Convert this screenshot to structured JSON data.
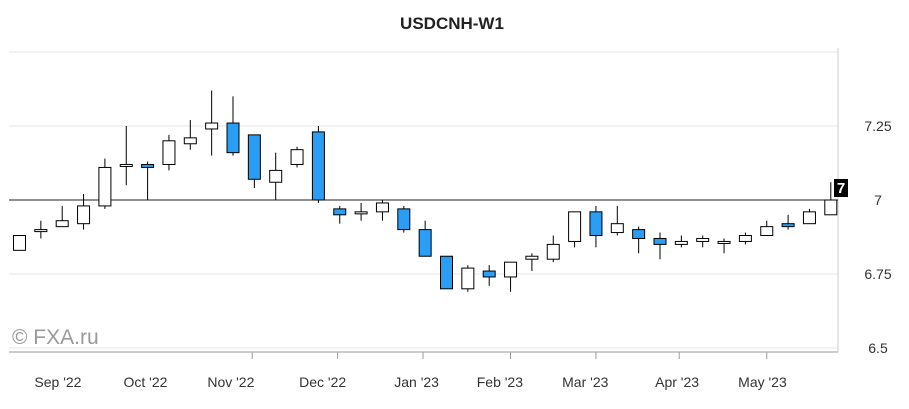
{
  "watermark": "© FXA.ru",
  "chart_data": {
    "type": "candlestick",
    "title": "USDCNH-W1",
    "ylim": [
      6.5,
      7.5
    ],
    "yticks": [
      6.5,
      6.75,
      7,
      7.25
    ],
    "ytick_labels": [
      "6.5",
      "6.75",
      "7",
      "7.25"
    ],
    "xtick_labels": [
      {
        "label": "Sep '22",
        "index": 1.8
      },
      {
        "label": "Oct '22",
        "index": 5.9
      },
      {
        "label": "Nov '22",
        "index": 9.9
      },
      {
        "label": "Dec '22",
        "index": 14.2
      },
      {
        "label": "Jan '23",
        "index": 18.6
      },
      {
        "label": "Feb '23",
        "index": 22.5
      },
      {
        "label": "Mar '23",
        "index": 26.5
      },
      {
        "label": "Apr '23",
        "index": 30.8
      },
      {
        "label": "May '23",
        "index": 34.8
      }
    ],
    "month_dividers": [
      10.9,
      14.9,
      18.9,
      23.0,
      27.0,
      30.9,
      35.0
    ],
    "current_price": 7.0,
    "current_label": "7",
    "colors": {
      "up": "#ffffff",
      "down": "#2a9df4",
      "wick": "#000000",
      "grid": "#e6e6e6"
    },
    "candles": [
      {
        "o": 6.83,
        "h": 6.88,
        "l": 6.83,
        "c": 6.88
      },
      {
        "o": 6.9,
        "h": 6.93,
        "l": 6.87,
        "c": 6.9
      },
      {
        "o": 6.91,
        "h": 6.98,
        "l": 6.91,
        "c": 6.93
      },
      {
        "o": 6.92,
        "h": 7.02,
        "l": 6.9,
        "c": 6.98
      },
      {
        "o": 6.98,
        "h": 7.14,
        "l": 6.97,
        "c": 7.11
      },
      {
        "o": 7.12,
        "h": 7.25,
        "l": 7.05,
        "c": 7.12
      },
      {
        "o": 7.12,
        "h": 7.13,
        "l": 7.0,
        "c": 7.11
      },
      {
        "o": 7.12,
        "h": 7.22,
        "l": 7.1,
        "c": 7.2
      },
      {
        "o": 7.19,
        "h": 7.27,
        "l": 7.17,
        "c": 7.21
      },
      {
        "o": 7.24,
        "h": 7.37,
        "l": 7.15,
        "c": 7.26
      },
      {
        "o": 7.26,
        "h": 7.35,
        "l": 7.15,
        "c": 7.16
      },
      {
        "o": 7.22,
        "h": 7.22,
        "l": 7.04,
        "c": 7.07
      },
      {
        "o": 7.06,
        "h": 7.16,
        "l": 7.0,
        "c": 7.1
      },
      {
        "o": 7.12,
        "h": 7.18,
        "l": 7.11,
        "c": 7.17
      },
      {
        "o": 7.23,
        "h": 7.25,
        "l": 6.99,
        "c": 7.0
      },
      {
        "o": 6.97,
        "h": 6.98,
        "l": 6.92,
        "c": 6.95
      },
      {
        "o": 6.96,
        "h": 6.99,
        "l": 6.93,
        "c": 6.96
      },
      {
        "o": 6.96,
        "h": 7.0,
        "l": 6.93,
        "c": 6.99
      },
      {
        "o": 6.97,
        "h": 6.98,
        "l": 6.89,
        "c": 6.9
      },
      {
        "o": 6.9,
        "h": 6.93,
        "l": 6.81,
        "c": 6.81
      },
      {
        "o": 6.81,
        "h": 6.81,
        "l": 6.7,
        "c": 6.7
      },
      {
        "o": 6.7,
        "h": 6.78,
        "l": 6.69,
        "c": 6.77
      },
      {
        "o": 6.76,
        "h": 6.78,
        "l": 6.71,
        "c": 6.74
      },
      {
        "o": 6.74,
        "h": 6.78,
        "l": 6.69,
        "c": 6.79
      },
      {
        "o": 6.8,
        "h": 6.82,
        "l": 6.76,
        "c": 6.81
      },
      {
        "o": 6.8,
        "h": 6.88,
        "l": 6.79,
        "c": 6.85
      },
      {
        "o": 6.86,
        "h": 6.96,
        "l": 6.84,
        "c": 6.96
      },
      {
        "o": 6.96,
        "h": 6.98,
        "l": 6.84,
        "c": 6.88
      },
      {
        "o": 6.89,
        "h": 6.98,
        "l": 6.88,
        "c": 6.92
      },
      {
        "o": 6.9,
        "h": 6.91,
        "l": 6.82,
        "c": 6.87
      },
      {
        "o": 6.87,
        "h": 6.89,
        "l": 6.8,
        "c": 6.85
      },
      {
        "o": 6.85,
        "h": 6.88,
        "l": 6.84,
        "c": 6.86
      },
      {
        "o": 6.86,
        "h": 6.88,
        "l": 6.84,
        "c": 6.87
      },
      {
        "o": 6.86,
        "h": 6.87,
        "l": 6.82,
        "c": 6.86
      },
      {
        "o": 6.86,
        "h": 6.89,
        "l": 6.85,
        "c": 6.88
      },
      {
        "o": 6.88,
        "h": 6.93,
        "l": 6.88,
        "c": 6.91
      },
      {
        "o": 6.92,
        "h": 6.95,
        "l": 6.9,
        "c": 6.91
      },
      {
        "o": 6.92,
        "h": 6.97,
        "l": 6.92,
        "c": 6.96
      },
      {
        "o": 6.95,
        "h": 7.06,
        "l": 6.95,
        "c": 7.0
      }
    ]
  }
}
